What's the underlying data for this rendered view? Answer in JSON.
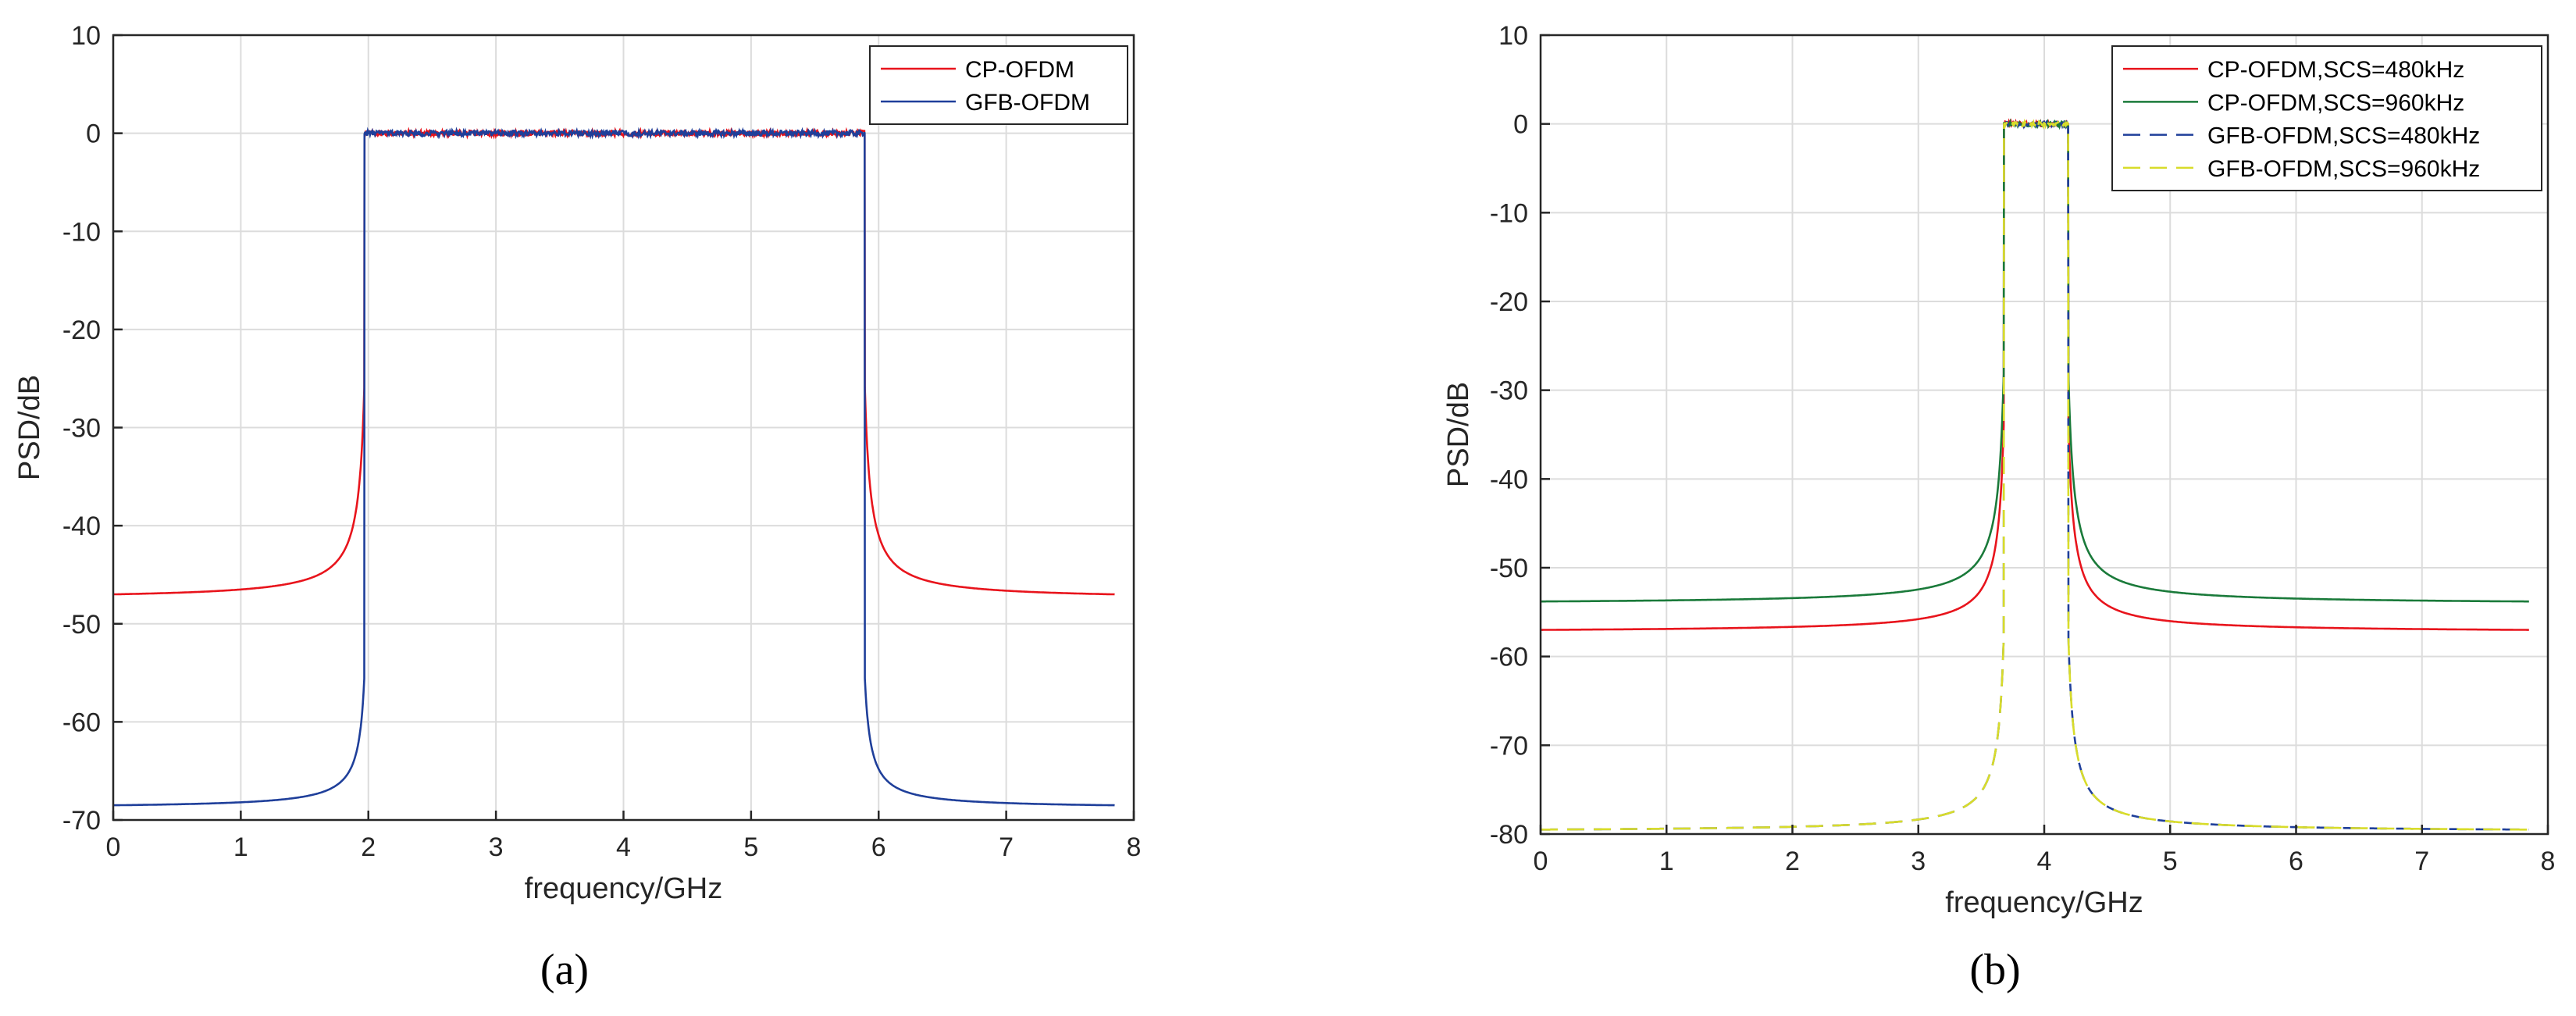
{
  "chart_data": [
    {
      "id": "a",
      "type": "line",
      "caption": "(a)",
      "xlabel": "frequency/GHz",
      "ylabel": "PSD/dB",
      "xlim": [
        0,
        8
      ],
      "ylim": [
        -70,
        10
      ],
      "xticks": [
        0,
        1,
        2,
        3,
        4,
        5,
        6,
        7,
        8
      ],
      "yticks": [
        10,
        0,
        -10,
        -20,
        -30,
        -40,
        -50,
        -60,
        -70
      ],
      "grid": true,
      "legend_position": "top-right",
      "series": [
        {
          "name": "CP-OFDM",
          "color": "#e8141c",
          "dash": "solid",
          "band": [
            1.97,
            5.89
          ],
          "edge": -47,
          "near": -25,
          "passband": 0
        },
        {
          "name": "GFB-OFDM",
          "color": "#1f3f9a",
          "dash": "solid",
          "band": [
            1.97,
            5.89
          ],
          "edge": -68.5,
          "near": -55,
          "passband": 0
        }
      ]
    },
    {
      "id": "b",
      "type": "line",
      "caption": "(b)",
      "xlabel": "frequency/GHz",
      "ylabel": "PSD/dB",
      "xlim": [
        0,
        8
      ],
      "ylim": [
        -80,
        10
      ],
      "xticks": [
        0,
        1,
        2,
        3,
        4,
        5,
        6,
        7,
        8
      ],
      "yticks": [
        10,
        0,
        -10,
        -20,
        -30,
        -40,
        -50,
        -60,
        -70,
        -80
      ],
      "grid": true,
      "legend_position": "top-right",
      "series": [
        {
          "name": "CP-OFDM,SCS=480kHz",
          "color": "#e8141c",
          "dash": "solid",
          "band": [
            3.68,
            4.19
          ],
          "edge": -57,
          "near": -33,
          "passband": 0
        },
        {
          "name": "CP-OFDM,SCS=960kHz",
          "color": "#1a7a3a",
          "dash": "solid",
          "band": [
            3.68,
            4.19
          ],
          "edge": -53.8,
          "near": -27,
          "passband": 0
        },
        {
          "name": "GFB-OFDM,SCS=480kHz",
          "color": "#1f3f9a",
          "dash": "dashed",
          "band": [
            3.68,
            4.19
          ],
          "edge": -79.5,
          "near": -57,
          "passband": 0
        },
        {
          "name": "GFB-OFDM,SCS=960kHz",
          "color": "#d8dc2a",
          "dash": "dashed",
          "band": [
            3.68,
            4.19
          ],
          "edge": -79.5,
          "near": -57,
          "passband": 0
        }
      ]
    }
  ]
}
